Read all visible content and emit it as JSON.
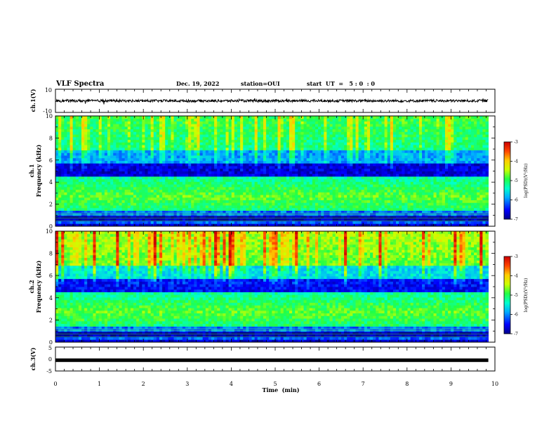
{
  "header": {
    "title": "VLF Spectra",
    "date": "Dec. 19, 2022",
    "station": "station=OUI",
    "start": "start  UT  =   5 : 0  : 0"
  },
  "chart_data": [
    {
      "type": "line",
      "panel": "ch1-waveform",
      "ylabel": "ch.1(V)",
      "ylim": [
        -10,
        10
      ],
      "y_ticks": [
        "10",
        "-10"
      ],
      "level": 0,
      "xlim": [
        0,
        10
      ],
      "x_end": 9.85
    },
    {
      "type": "heatmap",
      "panel": "ch1-spectrogram",
      "ylabel": "ch.1\nFrequency  (kHz)",
      "ylim": [
        0,
        10
      ],
      "y_ticks": [
        "0",
        "2",
        "4",
        "6",
        "8",
        "10"
      ],
      "xlim": [
        0,
        10
      ],
      "x_end": 9.85,
      "colorbar": {
        "label": "log(PSD)(V²/Hz)",
        "range": [
          -7,
          -3
        ],
        "ticks": [
          "-3",
          "-4",
          "-5",
          "-6",
          "-7"
        ]
      }
    },
    {
      "type": "heatmap",
      "panel": "ch2-spectrogram",
      "ylabel": "ch.2\nFrequency  (kHz)",
      "ylim": [
        0,
        10
      ],
      "y_ticks": [
        "0",
        "2",
        "4",
        "6",
        "8",
        "10"
      ],
      "xlim": [
        0,
        10
      ],
      "x_end": 9.85,
      "colorbar": {
        "label": "log(PSD)(V²/Hz)",
        "range": [
          -7,
          -3
        ],
        "ticks": [
          "-3",
          "-4",
          "-5",
          "-6",
          "-7"
        ]
      }
    },
    {
      "type": "line",
      "panel": "ch3-waveform",
      "ylabel": "ch.3(V)",
      "ylim": [
        -5,
        5
      ],
      "y_ticks": [
        "5",
        "0",
        "-5"
      ],
      "level": -0.5,
      "xlim": [
        0,
        10
      ],
      "x_end": 9.85,
      "xlabel": "Time  (min)",
      "x_ticks": [
        "0",
        "1",
        "2",
        "3",
        "4",
        "5",
        "6",
        "7",
        "8",
        "9",
        "10"
      ]
    }
  ],
  "colors": {
    "scale": [
      "#00008a",
      "#0000ff",
      "#00aaff",
      "#00ffcc",
      "#22ff44",
      "#ccff00",
      "#ffcc00",
      "#ff4400",
      "#cc0000"
    ]
  }
}
